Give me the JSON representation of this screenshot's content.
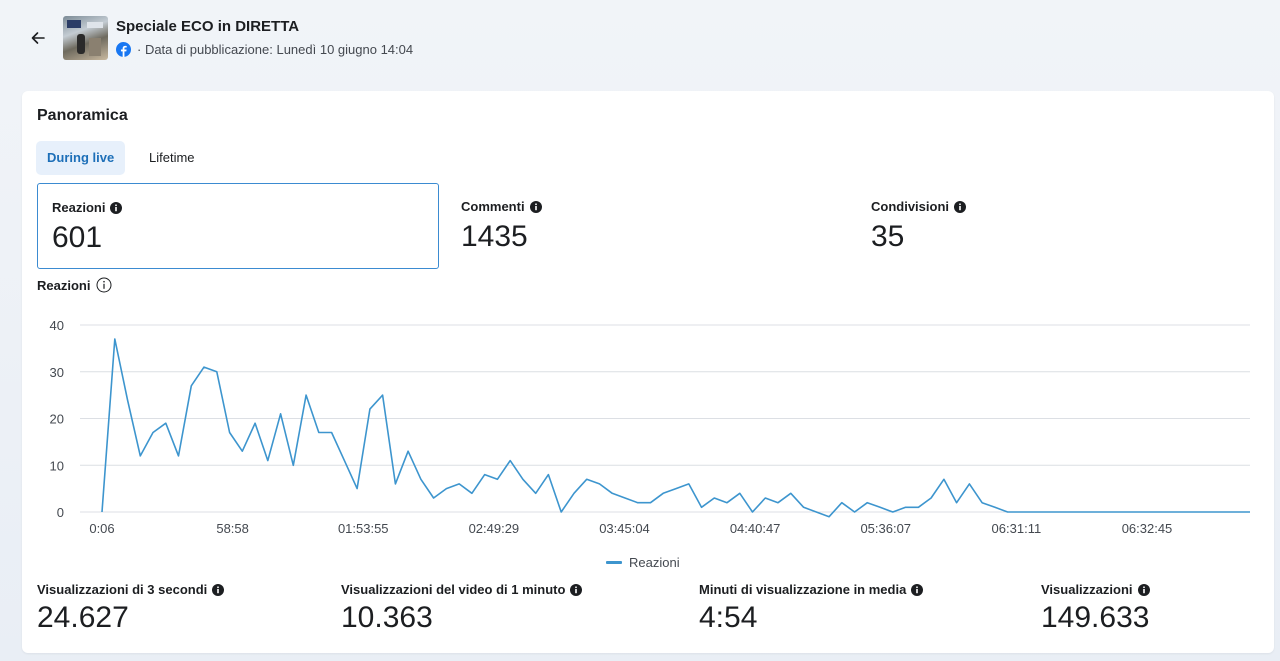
{
  "header": {
    "title": "Speciale ECO in DIRETTA",
    "publication": "· Data di pubblicazione: Lunedì 10 giugno 14:04",
    "back_icon": "arrow-left-icon",
    "platform_icon": "facebook-icon"
  },
  "overview": {
    "title": "Panoramica",
    "tabs": [
      {
        "label": "During live",
        "active": true
      },
      {
        "label": "Lifetime",
        "active": false
      }
    ],
    "metrics": [
      {
        "label": "Reazioni",
        "value": "601",
        "selected": true
      },
      {
        "label": "Commenti",
        "value": "1435",
        "selected": false
      },
      {
        "label": "Condivisioni",
        "value": "35",
        "selected": false
      }
    ],
    "chart_title": "Reazioni",
    "bottom_metrics": [
      {
        "label": "Visualizzazioni di 3 secondi",
        "value": "24.627"
      },
      {
        "label": "Visualizzazioni del video di 1 minuto",
        "value": "10.363"
      },
      {
        "label": "Minuti di visualizzazione in media",
        "value": "4:54"
      },
      {
        "label": "Visualizzazioni",
        "value": "149.633"
      }
    ]
  },
  "colors": {
    "accent": "#3d95ce",
    "tab_active_bg": "#e7f0fb",
    "tab_active_text": "#1d6fb8",
    "selected_border": "#3b8bd1",
    "facebook_blue": "#1877f2"
  },
  "chart_data": {
    "type": "line",
    "title": "Reazioni",
    "xlabel": "",
    "ylabel": "",
    "ylim": [
      0,
      40
    ],
    "yticks": [
      0,
      10,
      20,
      30,
      40
    ],
    "xtick_labels": [
      "0:06",
      "58:58",
      "01:53:55",
      "02:49:29",
      "03:45:04",
      "04:40:47",
      "05:36:07",
      "06:31:11",
      "06:32:45"
    ],
    "grid": true,
    "legend": "bottom-center",
    "series": [
      {
        "name": "Reazioni",
        "color": "#3d95ce",
        "values": [
          0,
          37,
          24,
          12,
          17,
          19,
          12,
          27,
          31,
          30,
          17,
          13,
          19,
          11,
          21,
          10,
          25,
          17,
          17,
          11,
          5,
          22,
          25,
          6,
          13,
          7,
          3,
          5,
          6,
          4,
          8,
          7,
          11,
          7,
          4,
          8,
          0,
          4,
          7,
          6,
          4,
          3,
          2,
          2,
          4,
          5,
          6,
          1,
          3,
          2,
          4,
          0,
          3,
          2,
          4,
          1,
          0,
          -1,
          2,
          0,
          2,
          1,
          0,
          1,
          1,
          3,
          7,
          2,
          6,
          2,
          1,
          0,
          0,
          0,
          0,
          0,
          0,
          0,
          0,
          0,
          0,
          0,
          0,
          0,
          0,
          0,
          0,
          0,
          0,
          0,
          0
        ]
      }
    ]
  }
}
